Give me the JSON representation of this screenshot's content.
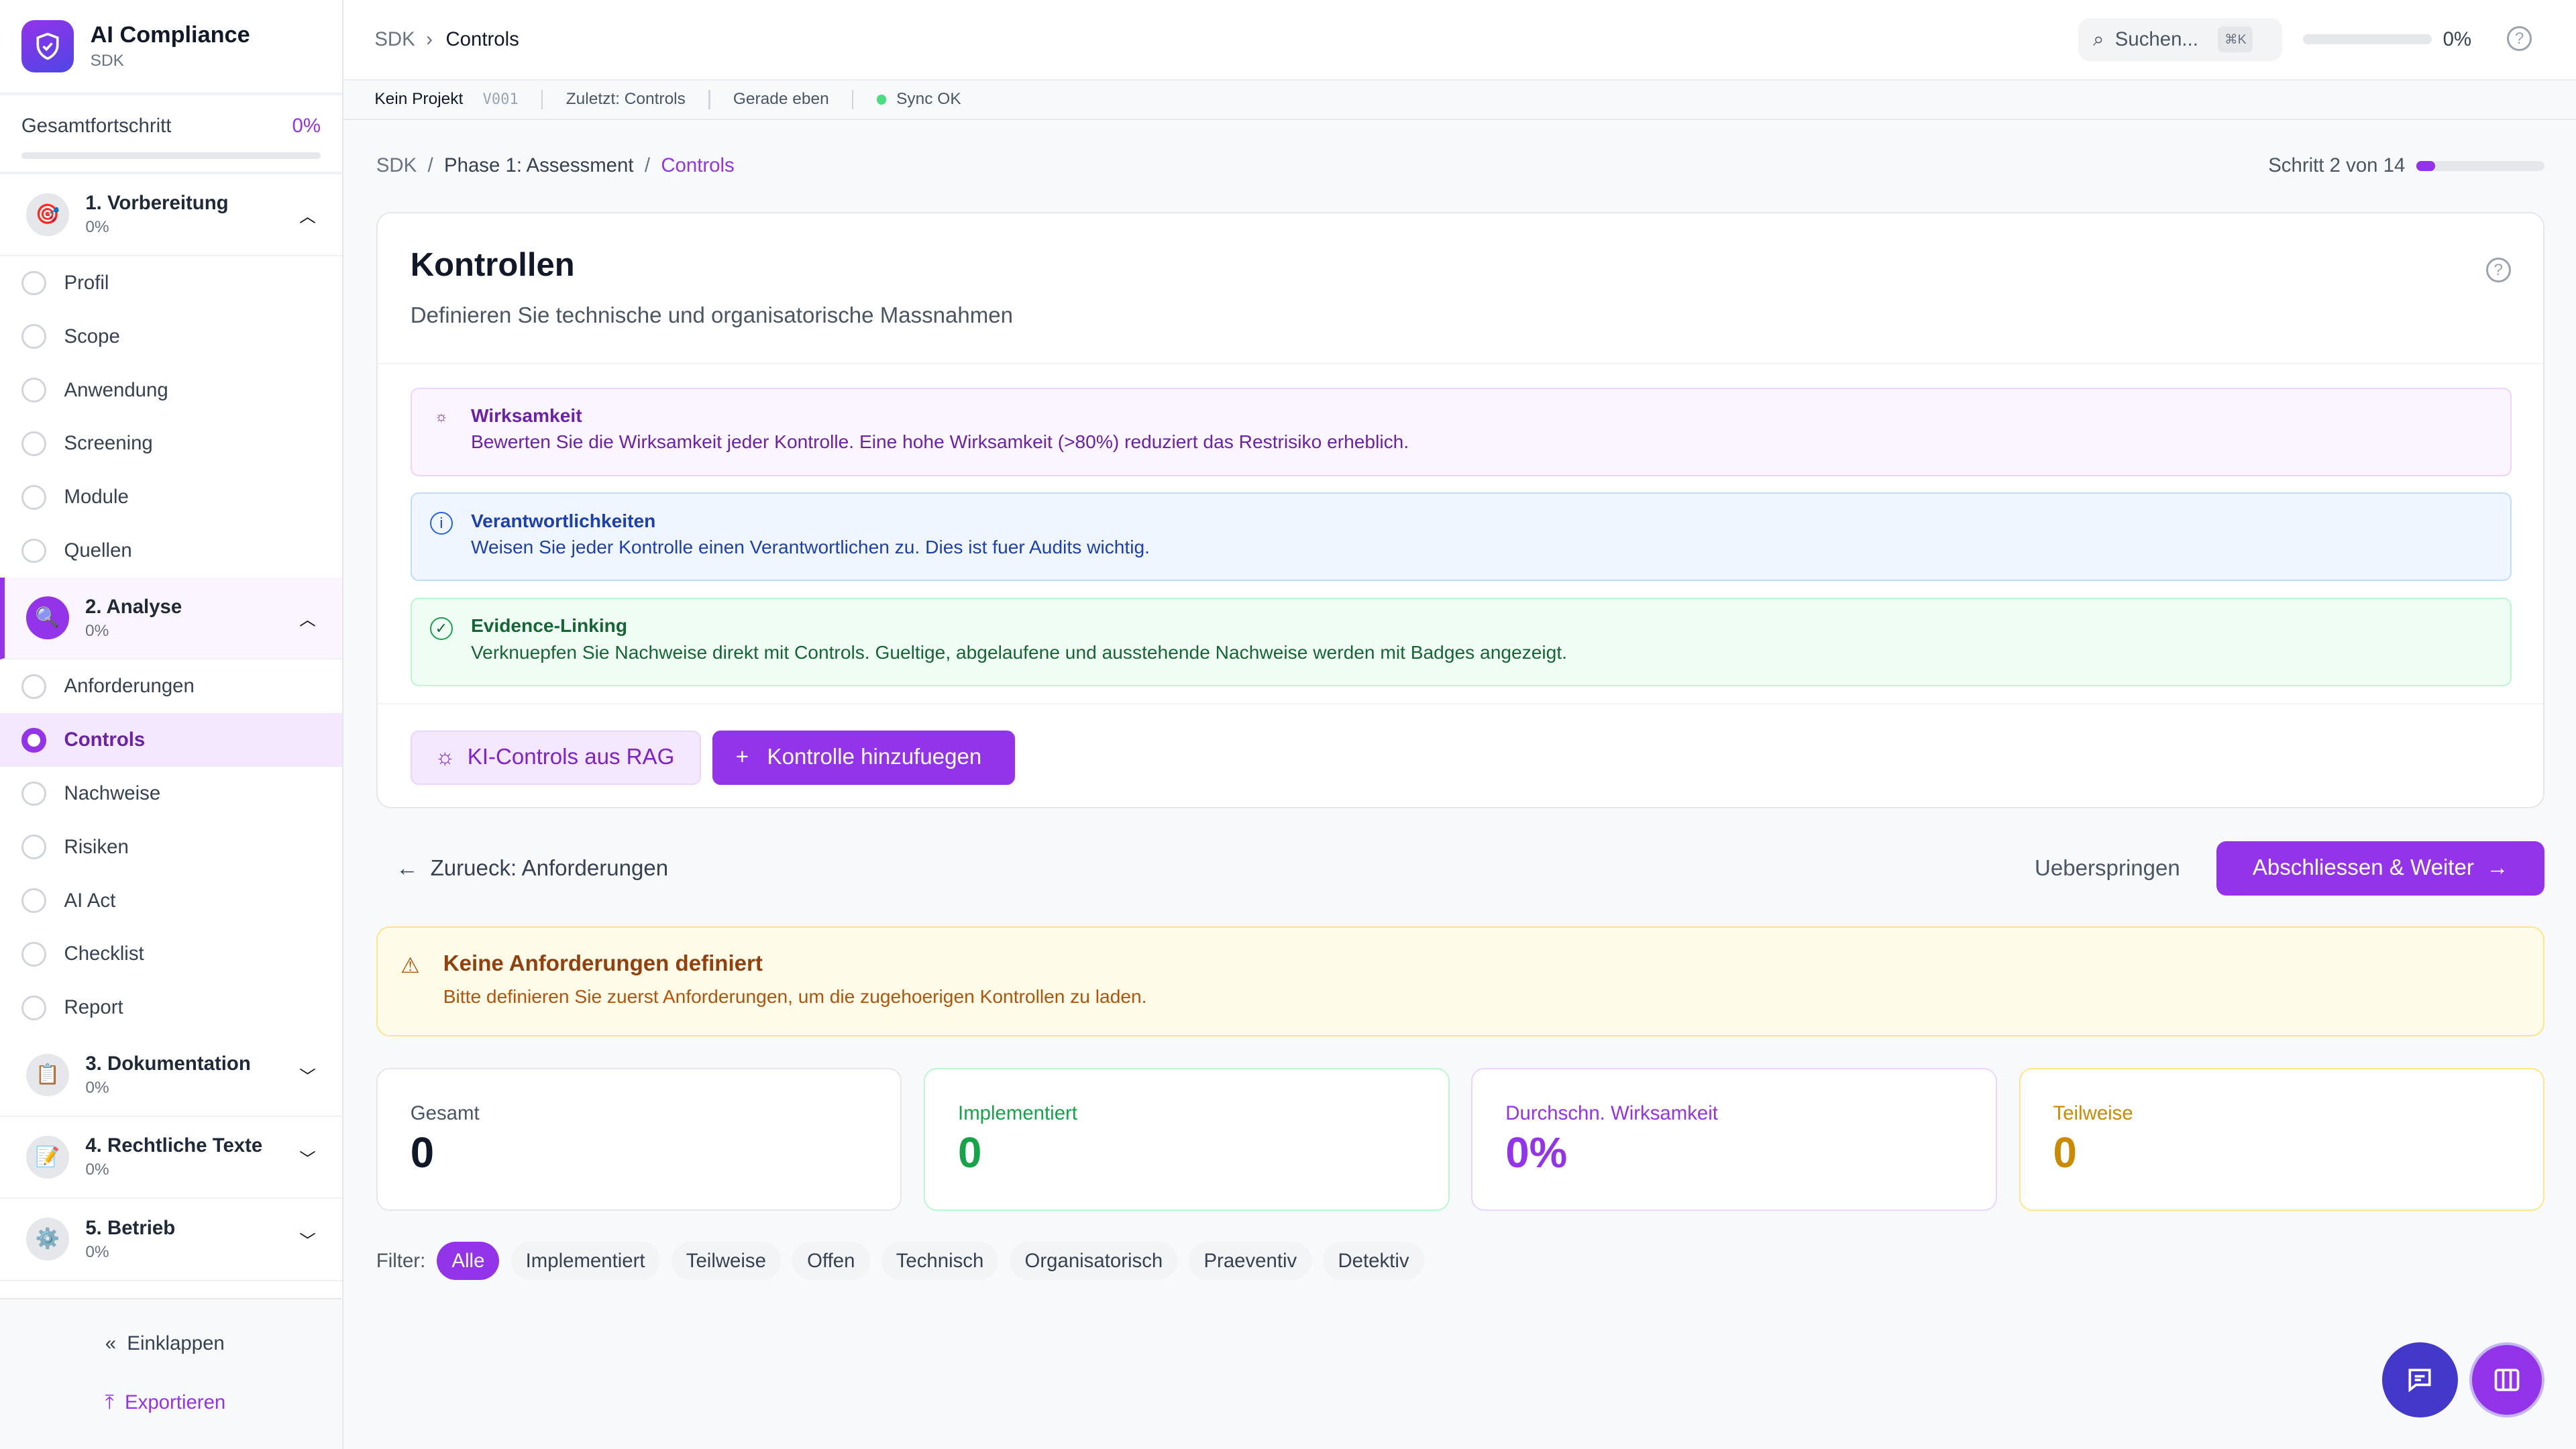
{
  "sidebar": {
    "brand_title": "AI Compliance",
    "brand_sub": "SDK",
    "progress_label": "Gesamtfortschritt",
    "progress_value": "0%",
    "phases": [
      {
        "name": "1. Vorbereitung",
        "pct": "0%",
        "icon": "target-icon",
        "steps": [
          "Profil",
          "Scope",
          "Anwendung",
          "Screening",
          "Module",
          "Quellen"
        ]
      },
      {
        "name": "2. Analyse",
        "pct": "0%",
        "icon": "magnifier-icon",
        "steps": [
          "Anforderungen",
          "Controls",
          "Nachweise",
          "Risiken",
          "AI Act",
          "Checklist",
          "Report"
        ]
      },
      {
        "name": "3. Dokumentation",
        "pct": "0%",
        "icon": "clipboard-icon"
      },
      {
        "name": "4. Rechtliche Texte",
        "pct": "0%",
        "icon": "pencil-icon"
      },
      {
        "name": "5. Betrieb",
        "pct": "0%",
        "icon": "gear-icon"
      }
    ],
    "collapse": "Einklappen",
    "export": "Exportieren"
  },
  "topbar": {
    "crumb_root": "SDK",
    "crumb_current": "Controls",
    "search_placeholder": "Suchen...",
    "shortcut": "⌘K",
    "progress": "0%"
  },
  "status": {
    "project": "Kein Projekt",
    "version": "V001",
    "last": "Zuletzt: Controls",
    "time": "Gerade eben",
    "sync": "Sync OK"
  },
  "breadcrumb": {
    "root": "SDK",
    "phase": "Phase 1: Assessment",
    "current": "Controls"
  },
  "step_indicator": {
    "label": "Schritt 2 von 14",
    "fraction": 0.143
  },
  "card": {
    "title": "Kontrollen",
    "subtitle": "Definieren Sie technische und organisatorische Massnahmen",
    "infos": [
      {
        "title": "Wirksamkeit",
        "text": "Bewerten Sie die Wirksamkeit jeder Kontrolle. Eine hohe Wirksamkeit (>80%) reduziert das Restrisiko erheblich."
      },
      {
        "title": "Verantwortlichkeiten",
        "text": "Weisen Sie jeder Kontrolle einen Verantwortlichen zu. Dies ist fuer Audits wichtig."
      },
      {
        "title": "Evidence-Linking",
        "text": "Verknuepfen Sie Nachweise direkt mit Controls. Gueltige, abgelaufene und ausstehende Nachweise werden mit Badges angezeigt."
      }
    ],
    "btn_rag": "KI-Controls aus RAG",
    "btn_add": "Kontrolle hinzufuegen"
  },
  "nav": {
    "back": "Zurueck: Anforderungen",
    "skip": "Ueberspringen",
    "next": "Abschliessen & Weiter"
  },
  "warning": {
    "title": "Keine Anforderungen definiert",
    "text": "Bitte definieren Sie zuerst Anforderungen, um die zugehoerigen Kontrollen zu laden."
  },
  "stats": [
    {
      "label": "Gesamt",
      "value": "0",
      "color": "#111827",
      "border": "#e5e7eb"
    },
    {
      "label": "Implementiert",
      "value": "0",
      "color": "#16a34a",
      "border": "#bbf7d0"
    },
    {
      "label": "Durchschn. Wirksamkeit",
      "value": "0%",
      "color": "#9333ea",
      "border": "#e9d5ff"
    },
    {
      "label": "Teilweise",
      "value": "0",
      "color": "#ca8a04",
      "border": "#fde68a"
    }
  ],
  "filters": {
    "label": "Filter:",
    "options": [
      "Alle",
      "Implementiert",
      "Teilweise",
      "Offen",
      "Technisch",
      "Organisatorisch",
      "Praeventiv",
      "Detektiv"
    ],
    "selected": "Alle"
  },
  "colors": {
    "accent": "#9333ea",
    "fab_chat": "#4338ca"
  }
}
